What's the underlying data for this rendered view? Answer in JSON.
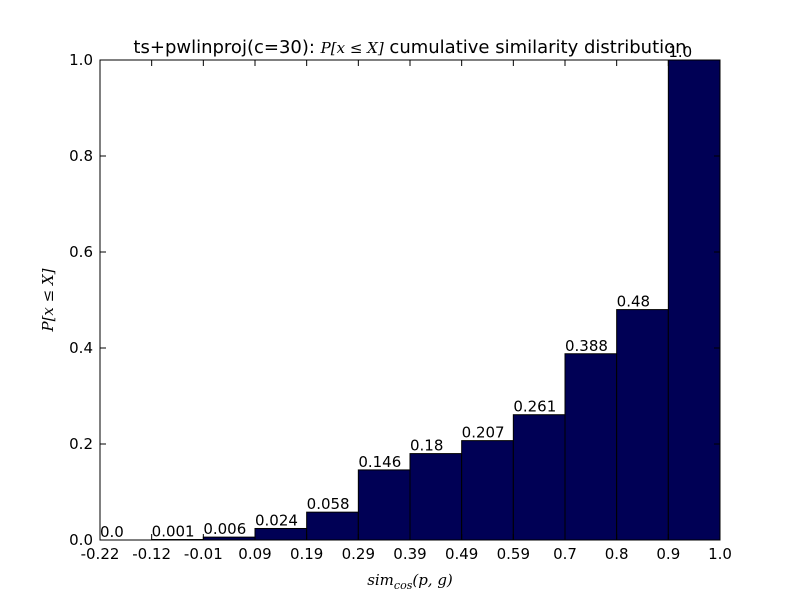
{
  "chart_data": {
    "type": "bar",
    "title": "ts+pwlinproj(c=30): P[x ≤ X] cumulative similarity distribution",
    "title_prefix": "ts+pwlinproj(c=30): ",
    "title_math": "P[x ≤ X]",
    "title_suffix": " cumulative similarity distribution",
    "xlabel": "sim",
    "xlabel_sub": "cos",
    "xlabel_args": "(p, g)",
    "ylabel": "P[x ≤ X]",
    "x_tick_labels": [
      "-0.22",
      "-0.12",
      "-0.01",
      "0.09",
      "0.19",
      "0.29",
      "0.39",
      "0.49",
      "0.59",
      "0.7",
      "0.8",
      "0.9",
      "1.0"
    ],
    "y_tick_labels": [
      "0.0",
      "0.2",
      "0.4",
      "0.6",
      "0.8",
      "1.0"
    ],
    "y_ticks": [
      0.0,
      0.2,
      0.4,
      0.6,
      0.8,
      1.0
    ],
    "ylim": [
      0,
      1.0
    ],
    "values": [
      0.0,
      0.001,
      0.006,
      0.024,
      0.058,
      0.146,
      0.18,
      0.207,
      0.261,
      0.388,
      0.48,
      1.0
    ],
    "value_labels": [
      "0.0",
      "0.001",
      "0.006",
      "0.024",
      "0.058",
      "0.146",
      "0.18",
      "0.207",
      "0.261",
      "0.388",
      "0.48",
      "1.0"
    ],
    "bar_color": "#000055",
    "edge_color": "#000000",
    "grid": false,
    "legend": "none"
  }
}
